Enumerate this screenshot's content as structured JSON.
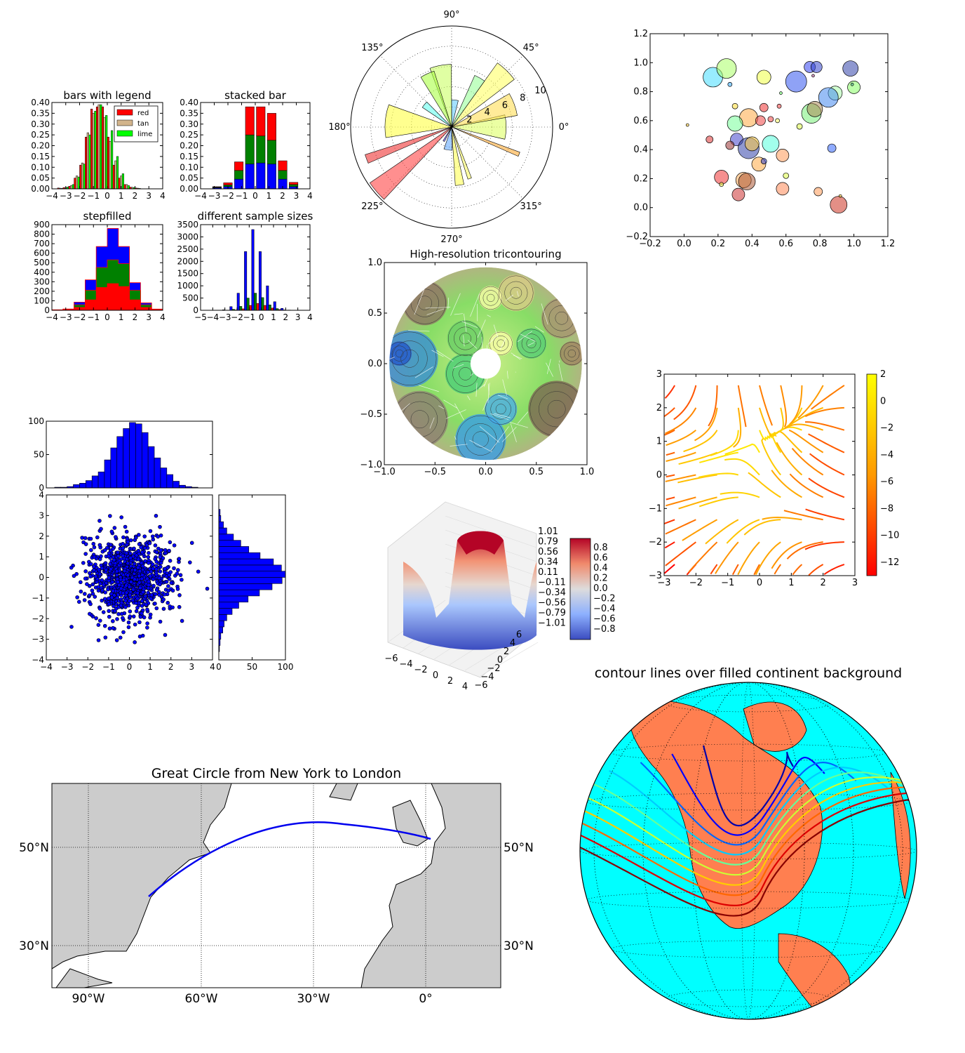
{
  "chart_data": [
    {
      "id": "bars_legend",
      "type": "bar",
      "title": "bars with legend",
      "xlim": [
        -4,
        4
      ],
      "ylim": [
        0,
        0.4
      ],
      "xticks": [
        "−4",
        "−3",
        "−2",
        "−1",
        "0",
        "1",
        "2",
        "3",
        "4"
      ],
      "yticks": [
        "0.00",
        "0.05",
        "0.10",
        "0.15",
        "0.20",
        "0.25",
        "0.30",
        "0.35",
        "0.40"
      ],
      "bin_edges": [
        -4,
        -3.6,
        -3.2,
        -2.8,
        -2.4,
        -2.0,
        -1.6,
        -1.2,
        -0.8,
        -0.4,
        0,
        0.4,
        0.8,
        1.2,
        1.6,
        2.0,
        2.4,
        2.8,
        3.2,
        3.6,
        4
      ],
      "series": [
        {
          "name": "red",
          "color": "#ff0000",
          "values": [
            0,
            0.004,
            0.006,
            0.012,
            0.05,
            0.11,
            0.24,
            0.37,
            0.38,
            0.38,
            0.24,
            0.11,
            0.05,
            0.02,
            0.008,
            0.004,
            0,
            0,
            0,
            0
          ]
        },
        {
          "name": "tan",
          "color": "#d2b48c",
          "values": [
            0,
            0.003,
            0.005,
            0.015,
            0.06,
            0.12,
            0.26,
            0.35,
            0.39,
            0.33,
            0.22,
            0.13,
            0.06,
            0.02,
            0.007,
            0.003,
            0,
            0,
            0,
            0
          ]
        },
        {
          "name": "lime",
          "color": "#00ff00",
          "values": [
            0,
            0.002,
            0.008,
            0.02,
            0.055,
            0.115,
            0.25,
            0.36,
            0.39,
            0.34,
            0.27,
            0.15,
            0.07,
            0.015,
            0.006,
            0.002,
            0,
            0,
            0,
            0
          ]
        }
      ]
    },
    {
      "id": "stacked_bar",
      "type": "bar",
      "title": "stacked bar",
      "xlim": [
        -4,
        4
      ],
      "ylim": [
        0,
        0.4
      ],
      "xticks": [
        "−4",
        "−3",
        "−2",
        "−1",
        "0",
        "1",
        "2",
        "3",
        "4"
      ],
      "yticks": [
        "0.00",
        "0.05",
        "0.10",
        "0.15",
        "0.20",
        "0.25",
        "0.30",
        "0.35",
        "0.40"
      ],
      "bin_edges": [
        -4,
        -3.2,
        -2.4,
        -1.6,
        -0.8,
        0,
        0.8,
        1.6,
        2.4,
        3.2,
        4
      ],
      "series": [
        {
          "name": "",
          "color": "#0000ff",
          "values": [
            0,
            0.005,
            0.01,
            0.045,
            0.115,
            0.12,
            0.115,
            0.045,
            0.01,
            0
          ]
        },
        {
          "name": "",
          "color": "#008000",
          "values": [
            0,
            0.003,
            0.008,
            0.04,
            0.135,
            0.125,
            0.11,
            0.04,
            0.01,
            0
          ]
        },
        {
          "name": "",
          "color": "#ff0000",
          "values": [
            0,
            0.002,
            0.01,
            0.04,
            0.13,
            0.135,
            0.125,
            0.045,
            0.01,
            0
          ]
        }
      ]
    },
    {
      "id": "stepfilled",
      "type": "area",
      "title": "stepfilled",
      "xlim": [
        -4,
        4
      ],
      "ylim": [
        0,
        900
      ],
      "xticks": [
        "−4",
        "−3",
        "−2",
        "−1",
        "0",
        "1",
        "2",
        "3",
        "4"
      ],
      "yticks": [
        "0",
        "100",
        "200",
        "300",
        "400",
        "500",
        "600",
        "700",
        "800",
        "900"
      ],
      "bin_edges": [
        -4,
        -3.2,
        -2.4,
        -1.6,
        -0.8,
        0,
        0.8,
        1.6,
        2.4,
        3.2,
        4
      ],
      "series": [
        {
          "name": "",
          "color": "#ff0000",
          "values": [
            2,
            6,
            30,
            110,
            240,
            280,
            250,
            110,
            30,
            5
          ]
        },
        {
          "name": "",
          "color": "#008000",
          "values": [
            2,
            4,
            28,
            100,
            210,
            250,
            240,
            100,
            28,
            4
          ]
        },
        {
          "name": "",
          "color": "#0000ff",
          "values": [
            1,
            4,
            28,
            110,
            220,
            330,
            180,
            80,
            20,
            4
          ]
        }
      ]
    },
    {
      "id": "sample_sizes",
      "type": "bar",
      "title": "different sample sizes",
      "xlim": [
        -5,
        4
      ],
      "ylim": [
        0,
        3500
      ],
      "xticks": [
        "−5",
        "−4",
        "−3",
        "−2",
        "−1",
        "0",
        "1",
        "2",
        "3",
        "4"
      ],
      "yticks": [
        "0",
        "500",
        "1000",
        "1500",
        "2000",
        "2500",
        "3000",
        "3500"
      ],
      "bin_edges": [
        -3.2,
        -2.6,
        -2.0,
        -1.4,
        -0.8,
        -0.2,
        0.4,
        1.0,
        1.6,
        2.2,
        2.8
      ],
      "series": [
        {
          "name": "",
          "color": "#0000ff",
          "values": [
            20,
            150,
            700,
            2400,
            3300,
            2400,
            1000,
            350,
            80,
            10
          ]
        },
        {
          "name": "",
          "color": "#008000",
          "values": [
            5,
            40,
            160,
            500,
            700,
            520,
            220,
            70,
            15,
            2
          ]
        },
        {
          "name": "",
          "color": "#ff0000",
          "values": [
            2,
            15,
            60,
            200,
            280,
            200,
            90,
            30,
            8,
            1
          ]
        }
      ]
    },
    {
      "id": "polar_bar",
      "type": "bar",
      "title": "",
      "angle_labels": [
        "0°",
        "45°",
        "90°",
        "135°",
        "180°",
        "225°",
        "270°",
        "315°"
      ],
      "radial_ticks": [
        "2",
        "4",
        "6",
        "8",
        "10"
      ],
      "rmax": 10,
      "bars": [
        {
          "theta": 0,
          "width": 0.45,
          "r": 5.4,
          "color": "#ddff66"
        },
        {
          "theta": 0.35,
          "width": 0.35,
          "r": 6.6,
          "color": "#ffdd55"
        },
        {
          "theta": 0.8,
          "width": 0.3,
          "r": 7.8,
          "color": "#ffff66"
        },
        {
          "theta": 1.05,
          "width": 0.2,
          "r": 5.6,
          "color": "#99ff99"
        },
        {
          "theta": 1.45,
          "width": 0.25,
          "r": 2.7,
          "color": "#66ccff"
        },
        {
          "theta": 1.75,
          "width": 0.35,
          "r": 6.2,
          "color": "#ccff66"
        },
        {
          "theta": 2.0,
          "width": 0.25,
          "r": 5.8,
          "color": "#aaff44"
        },
        {
          "theta": 2.45,
          "width": 0.2,
          "r": 3.5,
          "color": "#66ffee"
        },
        {
          "theta": 3.05,
          "width": 0.5,
          "r": 6.6,
          "color": "#ffff44"
        },
        {
          "theta": 3.5,
          "width": 0.1,
          "r": 9.0,
          "color": "#ee3333"
        },
        {
          "theta": 3.85,
          "width": 0.22,
          "r": 9.8,
          "color": "#ff4444"
        },
        {
          "theta": 4.2,
          "width": 0.1,
          "r": 1.6,
          "color": "#5544ff"
        },
        {
          "theta": 4.55,
          "width": 0.35,
          "r": 2.3,
          "color": "#66aaff"
        },
        {
          "theta": 4.85,
          "width": 0.15,
          "r": 5.8,
          "color": "#ffff55"
        },
        {
          "theta": 5.05,
          "width": 0.07,
          "r": 5.4,
          "color": "#ffff66"
        },
        {
          "theta": 5.9,
          "width": 0.06,
          "r": 7.2,
          "color": "#ffaa33"
        }
      ]
    },
    {
      "id": "bubble_scatter",
      "type": "scatter",
      "title": "",
      "xlim": [
        -0.2,
        1.2
      ],
      "ylim": [
        -0.2,
        1.2
      ],
      "xticks": [
        "−0.2",
        "0.0",
        "0.2",
        "0.4",
        "0.6",
        "0.8",
        "1.0",
        "1.2"
      ],
      "yticks": [
        "−0.2",
        "0.0",
        "0.2",
        "0.4",
        "0.6",
        "0.8",
        "1.0",
        "1.2"
      ],
      "points": [
        {
          "x": 0.17,
          "y": 0.9,
          "s": 14,
          "c": "#44ddff"
        },
        {
          "x": 0.25,
          "y": 0.96,
          "s": 14,
          "c": "#aaff66"
        },
        {
          "x": 0.27,
          "y": 0.85,
          "s": 3,
          "c": "#33aaff"
        },
        {
          "x": 0.47,
          "y": 0.9,
          "s": 10,
          "c": "#eeff44"
        },
        {
          "x": 0.66,
          "y": 0.87,
          "s": 15,
          "c": "#3355ee"
        },
        {
          "x": 0.74,
          "y": 0.97,
          "s": 8,
          "c": "#3344ee"
        },
        {
          "x": 0.78,
          "y": 0.97,
          "s": 8,
          "c": "#3344cc"
        },
        {
          "x": 0.76,
          "y": 0.91,
          "s": 2,
          "c": "#aa4488"
        },
        {
          "x": 0.98,
          "y": 0.96,
          "s": 11,
          "c": "#3344aa"
        },
        {
          "x": 0.89,
          "y": 0.79,
          "s": 10,
          "c": "#aaffaa"
        },
        {
          "x": 1.0,
          "y": 0.83,
          "s": 9,
          "c": "#88ff66"
        },
        {
          "x": 0.99,
          "y": 0.85,
          "s": 2,
          "c": "#44aa88"
        },
        {
          "x": 0.85,
          "y": 0.76,
          "s": 14,
          "c": "#4488ee"
        },
        {
          "x": 0.75,
          "y": 0.65,
          "s": 14,
          "c": "#77ee77"
        },
        {
          "x": 0.77,
          "y": 0.68,
          "s": 11,
          "c": "#aa8855"
        },
        {
          "x": 0.57,
          "y": 0.79,
          "s": 2,
          "c": "#66ff66"
        },
        {
          "x": 0.47,
          "y": 0.69,
          "s": 6,
          "c": "#ee3333"
        },
        {
          "x": 0.56,
          "y": 0.7,
          "s": 3,
          "c": "#ff4444"
        },
        {
          "x": 0.38,
          "y": 0.62,
          "s": 13,
          "c": "#ffaa44"
        },
        {
          "x": 0.3,
          "y": 0.7,
          "s": 4,
          "c": "#ffdd33"
        },
        {
          "x": 0.3,
          "y": 0.58,
          "s": 11,
          "c": "#77ff99"
        },
        {
          "x": 0.45,
          "y": 0.6,
          "s": 7,
          "c": "#ee4444"
        },
        {
          "x": 0.51,
          "y": 0.61,
          "s": 4,
          "c": "#ee4444"
        },
        {
          "x": 0.55,
          "y": 0.6,
          "s": 3,
          "c": "#ffff66"
        },
        {
          "x": 0.68,
          "y": 0.56,
          "s": 4,
          "c": "#ddff44"
        },
        {
          "x": 0.02,
          "y": 0.57,
          "s": 2,
          "c": "#ffcc33"
        },
        {
          "x": 0.15,
          "y": 0.47,
          "s": 5,
          "c": "#dd3333"
        },
        {
          "x": 0.31,
          "y": 0.47,
          "s": 9,
          "c": "#4444cc"
        },
        {
          "x": 0.27,
          "y": 0.43,
          "s": 6,
          "c": "#993333"
        },
        {
          "x": 0.38,
          "y": 0.41,
          "s": 15,
          "c": "#3344aa"
        },
        {
          "x": 0.4,
          "y": 0.44,
          "s": 10,
          "c": "#ffcc44"
        },
        {
          "x": 0.51,
          "y": 0.44,
          "s": 12,
          "c": "#55ffdd"
        },
        {
          "x": 0.58,
          "y": 0.36,
          "s": 9,
          "c": "#ff9955"
        },
        {
          "x": 0.44,
          "y": 0.3,
          "s": 10,
          "c": "#ffaa44"
        },
        {
          "x": 0.47,
          "y": 0.32,
          "s": 4,
          "c": "#3344cc"
        },
        {
          "x": 0.87,
          "y": 0.41,
          "s": 6,
          "c": "#3366ff"
        },
        {
          "x": 0.22,
          "y": 0.21,
          "s": 10,
          "c": "#ee3333"
        },
        {
          "x": 0.22,
          "y": 0.16,
          "s": 3,
          "c": "#eeee44"
        },
        {
          "x": 0.35,
          "y": 0.19,
          "s": 11,
          "c": "#ffaa55"
        },
        {
          "x": 0.37,
          "y": 0.18,
          "s": 12,
          "c": "#aa5533"
        },
        {
          "x": 0.6,
          "y": 0.22,
          "s": 4,
          "c": "#ddff44"
        },
        {
          "x": 0.58,
          "y": 0.13,
          "s": 9,
          "c": "#ff8855"
        },
        {
          "x": 0.32,
          "y": 0.09,
          "s": 9,
          "c": "#cc3333"
        },
        {
          "x": 0.79,
          "y": 0.11,
          "s": 6,
          "c": "#ff9955"
        },
        {
          "x": 0.91,
          "y": 0.02,
          "s": 12,
          "c": "#cc3322"
        },
        {
          "x": 0.92,
          "y": 0.08,
          "s": 2,
          "c": "#ffcc33"
        }
      ]
    },
    {
      "id": "tricontour",
      "type": "heatmap",
      "title": "High-resolution tricontouring",
      "xlim": [
        -1.0,
        1.0
      ],
      "ylim": [
        -1.0,
        1.0
      ],
      "xticks": [
        "−1.0",
        "−0.5",
        "0.0",
        "0.5",
        "1.0"
      ],
      "yticks": [
        "−1.0",
        "−0.5",
        "0.0",
        "0.5",
        "1.0"
      ]
    },
    {
      "id": "streamplot",
      "type": "line",
      "title": "",
      "xlim": [
        -3,
        3
      ],
      "ylim": [
        -3,
        3
      ],
      "xticks": [
        "−3",
        "−2",
        "−1",
        "0",
        "1",
        "2",
        "3"
      ],
      "yticks": [
        "−3",
        "−2",
        "−1",
        "0",
        "1",
        "2",
        "3"
      ],
      "colorbar_ticks": [
        "2",
        "0",
        "−2",
        "−4",
        "−6",
        "−8",
        "−10",
        "−12"
      ],
      "colorbar_range": [
        -13,
        2
      ]
    },
    {
      "id": "scatter_hist",
      "type": "scatter",
      "title": "",
      "scatter_xlim": [
        -4,
        4
      ],
      "scatter_ylim": [
        -4,
        4
      ],
      "scatter_xticks": [
        "−4",
        "−3",
        "−2",
        "−1",
        "0",
        "1",
        "2",
        "3",
        "4"
      ],
      "scatter_yticks": [
        "−4",
        "−3",
        "−2",
        "−1",
        "0",
        "1",
        "2",
        "3",
        "4"
      ],
      "hist_top_ylim": [
        0,
        100
      ],
      "hist_top_yticks": [
        "0",
        "50",
        "100"
      ],
      "hist_right_xlim": [
        0,
        100
      ],
      "hist_right_xticks": [
        "0",
        "50",
        "100"
      ],
      "hist_bins": [
        -3.6,
        -3.3,
        -3.0,
        -2.7,
        -2.4,
        -2.1,
        -1.8,
        -1.5,
        -1.2,
        -0.9,
        -0.6,
        -0.3,
        0,
        0.3,
        0.6,
        0.9,
        1.2,
        1.5,
        1.8,
        2.1,
        2.4,
        2.7,
        3.0,
        3.3
      ],
      "hist_top_values": [
        1,
        1,
        2,
        5,
        7,
        11,
        18,
        24,
        42,
        60,
        77,
        89,
        98,
        96,
        83,
        62,
        45,
        30,
        20,
        10,
        4,
        2,
        1
      ],
      "hist_right_values": [
        1,
        2,
        3,
        6,
        8,
        12,
        20,
        30,
        44,
        61,
        80,
        95,
        100,
        94,
        82,
        62,
        45,
        33,
        22,
        12,
        7,
        3,
        2
      ],
      "point_count": 1000
    },
    {
      "id": "surface3d",
      "type": "heatmap",
      "title": "",
      "xticks": [
        "−6",
        "−4",
        "−2",
        "0",
        "2",
        "4"
      ],
      "yticks": [
        "6",
        "4",
        "2",
        "0",
        "−2",
        "−4",
        "−6"
      ],
      "zticks": [
        "1.01",
        "0.79",
        "0.56",
        "0.34",
        "0.11",
        "−0.11",
        "−0.34",
        "−0.56",
        "−0.79",
        "−1.01"
      ],
      "colorbar_ticks": [
        "0.8",
        "0.6",
        "0.4",
        "0.2",
        "0.0",
        "−0.2",
        "−0.4",
        "−0.6",
        "−0.8"
      ]
    },
    {
      "id": "great_circle",
      "type": "line",
      "title": "Great Circle from New York to London",
      "lon_labels": [
        "90°W",
        "60°W",
        "30°W",
        "0°"
      ],
      "lat_labels": [
        "50°N",
        "30°N"
      ]
    },
    {
      "id": "ortho_contour",
      "type": "line",
      "title": "contour lines over filled continent background"
    }
  ]
}
